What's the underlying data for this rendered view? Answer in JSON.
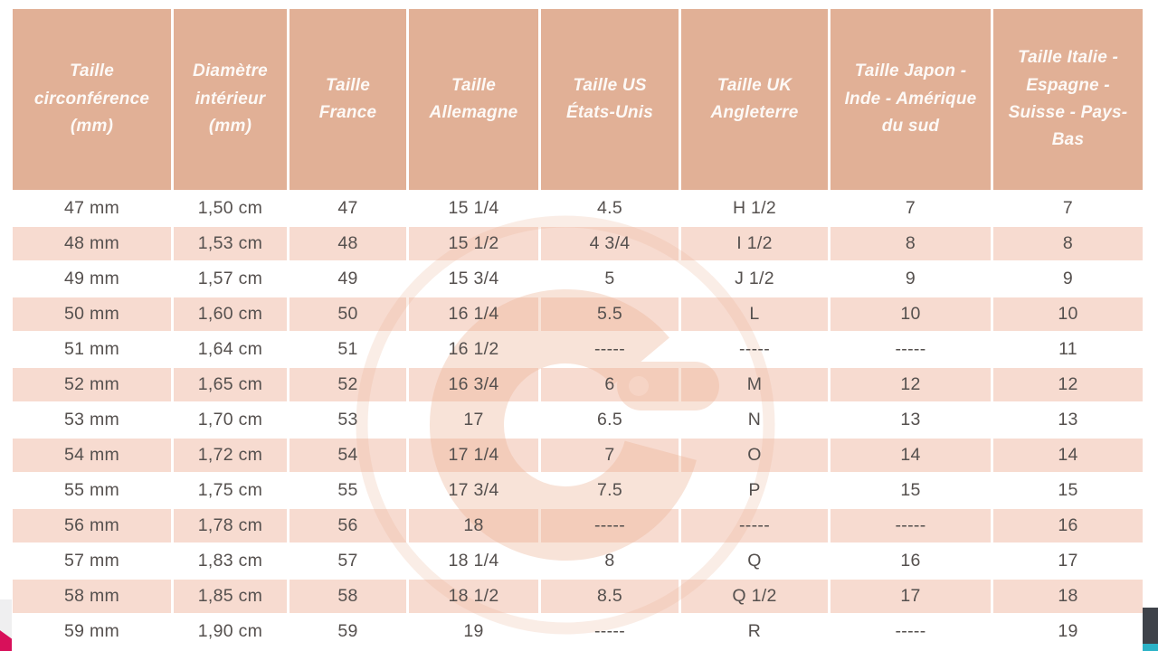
{
  "table": {
    "name": "ring-size-conversion-table",
    "headers": [
      "Taille circonférence (mm)",
      "Diamètre intérieur (mm)",
      "Taille France",
      "Taille Allemagne",
      "Taille US États-Unis",
      "Taille UK Angleterre",
      "Taille Japon - Inde - Amérique du sud",
      "Taille Italie - Espagne - Suisse - Pays-Bas"
    ],
    "rows": [
      [
        "47 mm",
        "1,50 cm",
        "47",
        "15 1/4",
        "4.5",
        "H 1/2",
        "7",
        "7"
      ],
      [
        "48 mm",
        "1,53 cm",
        "48",
        "15 1/2",
        "4 3/4",
        "I 1/2",
        "8",
        "8"
      ],
      [
        "49 mm",
        "1,57 cm",
        "49",
        "15 3/4",
        "5",
        "J 1/2",
        "9",
        "9"
      ],
      [
        "50 mm",
        "1,60 cm",
        "50",
        "16 1/4",
        "5.5",
        "L",
        "10",
        "10"
      ],
      [
        "51 mm",
        "1,64 cm",
        "51",
        "16 1/2",
        "-----",
        "-----",
        "-----",
        "11"
      ],
      [
        "52 mm",
        "1,65 cm",
        "52",
        "16 3/4",
        "6",
        "M",
        "12",
        "12"
      ],
      [
        "53 mm",
        "1,70 cm",
        "53",
        "17",
        "6.5",
        "N",
        "13",
        "13"
      ],
      [
        "54 mm",
        "1,72 cm",
        "54",
        "17 1/4",
        "7",
        "O",
        "14",
        "14"
      ],
      [
        "55 mm",
        "1,75 cm",
        "55",
        "17 3/4",
        "7.5",
        "P",
        "15",
        "15"
      ],
      [
        "56 mm",
        "1,78 cm",
        "56",
        "18",
        "-----",
        "-----",
        "-----",
        "16"
      ],
      [
        "57 mm",
        "1,83 cm",
        "57",
        "18 1/4",
        "8",
        "Q",
        "16",
        "17"
      ],
      [
        "58 mm",
        "1,85 cm",
        "58",
        "18 1/2",
        "8.5",
        "Q 1/2",
        "17",
        "18"
      ],
      [
        "59 mm",
        "1,90 cm",
        "59",
        "19",
        "-----",
        "R",
        "-----",
        "19"
      ]
    ]
  },
  "watermark": {
    "icon": "g-logo-watermark"
  },
  "colors": {
    "header_bg": "#e1b096",
    "header_text": "#fdf9f6",
    "row_alt_bg": "#f8dcd0",
    "body_text": "#55504e",
    "watermark": "#f8e3d8",
    "watermark_dot": "#fdf2ec",
    "edge_gray": "#efeff0",
    "ribbon_crimson": "#d8105a",
    "edge_dark": "#3f434a",
    "edge_teal": "#2cb3c7"
  }
}
